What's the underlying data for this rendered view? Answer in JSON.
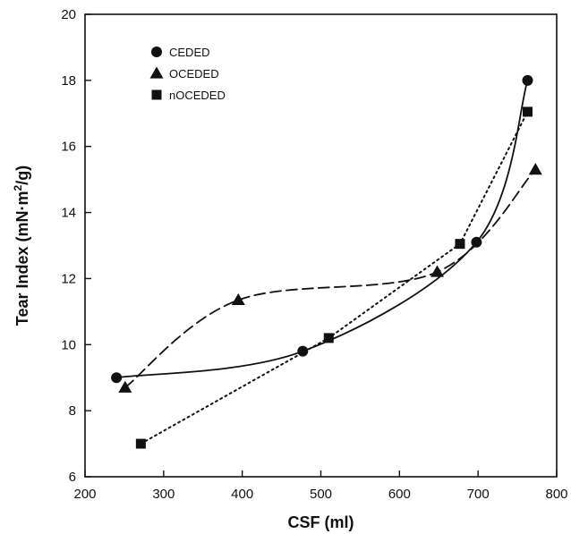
{
  "chart_data": {
    "type": "line",
    "title": "",
    "xlabel": "CSF (ml)",
    "ylabel_main": "Tear Index (mN·m",
    "ylabel_sup": "2",
    "ylabel_tail": "/g)",
    "xlim": [
      200,
      800
    ],
    "ylim": [
      6,
      20
    ],
    "xticks": [
      200,
      300,
      400,
      500,
      600,
      700,
      800
    ],
    "yticks": [
      6,
      8,
      10,
      12,
      14,
      16,
      18,
      20
    ],
    "grid": false,
    "legend_position": "top-left",
    "series": [
      {
        "name": "CEDED",
        "marker": "circle",
        "line": "solid",
        "x": [
          240,
          477,
          698,
          763
        ],
        "y": [
          9.0,
          9.8,
          13.1,
          18.0
        ]
      },
      {
        "name": "OCEDED",
        "marker": "triangle",
        "line": "dashed",
        "x": [
          251,
          395,
          648,
          773
        ],
        "y": [
          8.7,
          11.35,
          12.2,
          15.3
        ]
      },
      {
        "name": "nOCEDED",
        "marker": "square",
        "line": "dotted",
        "x": [
          271,
          510,
          677,
          763
        ],
        "y": [
          7.0,
          10.2,
          13.05,
          17.05
        ]
      }
    ]
  }
}
